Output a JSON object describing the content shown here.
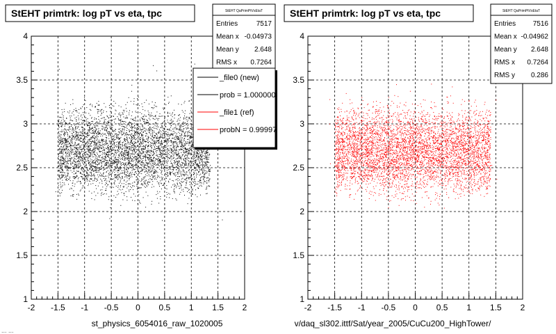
{
  "footer": {
    "left_xlabel": "st_physics_6054016_raw_1020005",
    "right_xlabel": "v/daq_sl302.ittf/Sat/year_2005/CuCu200_HighTower/",
    "timestamp_fragment": "... ..."
  },
  "legend": {
    "entries": [
      {
        "label": "_file0 (new)",
        "color": "#000000"
      },
      {
        "label": "prob = 1.000000",
        "color": "#000000"
      },
      {
        "label": "_file1 (ref)",
        "color": "#ff0000"
      },
      {
        "label": "probN = 0.99997",
        "color": "#ff0000"
      }
    ]
  },
  "chart_data": [
    {
      "type": "scatter",
      "title": "StEHT primtrk: log pT vs eta, tpc",
      "xlabel": "st_physics_6054016_raw_1020005",
      "ylabel": "",
      "xlim": [
        -2,
        2
      ],
      "ylim": [
        1,
        4
      ],
      "x_ticks": [
        "-2",
        "-1.5",
        "-1",
        "-0.5",
        "0",
        "0.5",
        "1",
        "1.5",
        "2"
      ],
      "y_ticks": [
        "1",
        "1.5",
        "2",
        "2.5",
        "3",
        "3.5",
        "4"
      ],
      "grid": true,
      "marker_color": "#000000",
      "point_region": {
        "x": [
          -1.5,
          1.35
        ],
        "y": [
          2.0,
          3.4
        ]
      },
      "stats": {
        "name": "StEHT QaPrimPtVsEtaT",
        "rows": [
          {
            "label": "Entries",
            "value": "7517"
          },
          {
            "label": "Mean x",
            "value": "-0.04973"
          },
          {
            "label": "Mean y",
            "value": "2.648"
          },
          {
            "label": "RMS x",
            "value": "0.7264"
          }
        ]
      }
    },
    {
      "type": "scatter",
      "title": "StEHT primtrk: log pT vs eta, tpc",
      "xlabel": "v/daq_sl302.ittf/Sat/year_2005/CuCu200_HighTower/",
      "ylabel": "",
      "xlim": [
        -2,
        2
      ],
      "ylim": [
        1,
        4
      ],
      "x_ticks": [
        "-2",
        "-1.5",
        "-1",
        "-0.5",
        "0",
        "0.5",
        "1",
        "1.5",
        "2"
      ],
      "y_ticks": [
        "1",
        "1.5",
        "2",
        "2.5",
        "3",
        "3.5",
        "4"
      ],
      "grid": true,
      "marker_color": "#ff0000",
      "point_region": {
        "x": [
          -1.5,
          1.4
        ],
        "y": [
          2.0,
          3.4
        ]
      },
      "stats": {
        "name": "StEHT QaPrimPtVsEtaT",
        "rows": [
          {
            "label": "Entries",
            "value": "7516"
          },
          {
            "label": "Mean x",
            "value": "-0.04962"
          },
          {
            "label": "Mean y",
            "value": "2.648"
          },
          {
            "label": "RMS x",
            "value": "0.7264"
          },
          {
            "label": "RMS y",
            "value": "0.286"
          }
        ]
      }
    }
  ]
}
